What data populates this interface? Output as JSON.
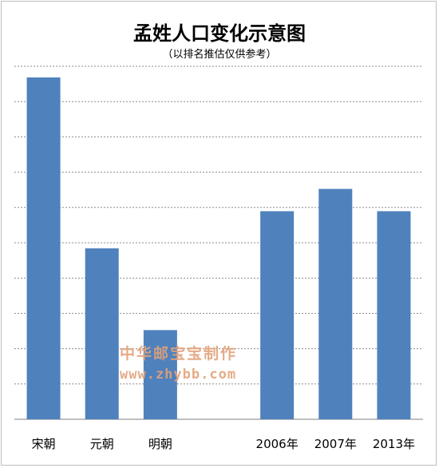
{
  "chart_data": {
    "type": "bar",
    "title": "孟姓人口变化示意图",
    "subtitle": "（以排名推估仅供参考）",
    "xlabel": "",
    "ylabel": "",
    "categories": [
      "宋朝",
      "元朝",
      "明朝",
      "",
      "2006年",
      "2007年",
      "2013年"
    ],
    "values": [
      9.2,
      4.6,
      2.4,
      null,
      5.6,
      6.2,
      5.6
    ],
    "ylim": [
      0,
      9.5
    ],
    "grid": true,
    "bar_color": "#4f81bd",
    "grid_color": "#8c8c8c"
  },
  "watermark": {
    "line1": "中华邮宝宝制作",
    "line2": "www.zhybb.com",
    "color": "#e3a27a"
  }
}
